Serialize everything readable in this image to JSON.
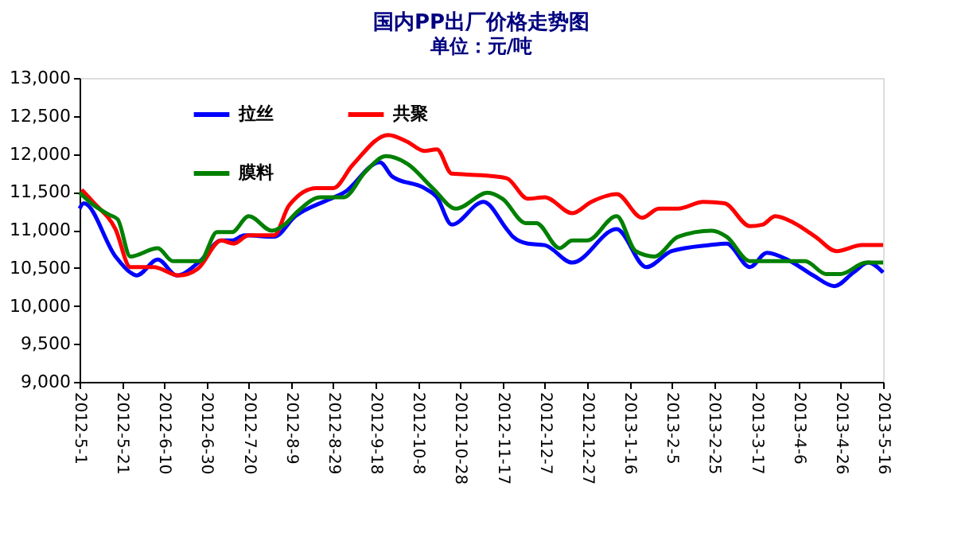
{
  "chart_data": {
    "type": "line",
    "title": "国内PP出厂价格走势图",
    "subtitle": "单位：元/吨",
    "xlim": [
      "2012-05-01",
      "2013-05-16"
    ],
    "xticks": [
      {
        "value": "2012-05-01",
        "label": "2012-5-1"
      },
      {
        "value": "2012-05-21",
        "label": "2012-5-21"
      },
      {
        "value": "2012-06-10",
        "label": "2012-6-10"
      },
      {
        "value": "2012-06-30",
        "label": "2012-6-30"
      },
      {
        "value": "2012-07-20",
        "label": "2012-7-20"
      },
      {
        "value": "2012-08-09",
        "label": "2012-8-9"
      },
      {
        "value": "2012-08-29",
        "label": "2012-8-29"
      },
      {
        "value": "2012-09-18",
        "label": "2012-9-18"
      },
      {
        "value": "2012-10-08",
        "label": "2012-10-8"
      },
      {
        "value": "2012-10-28",
        "label": "2012-10-28"
      },
      {
        "value": "2012-11-17",
        "label": "2012-11-17"
      },
      {
        "value": "2012-12-07",
        "label": "2012-12-7"
      },
      {
        "value": "2012-12-27",
        "label": "2012-12-27"
      },
      {
        "value": "2013-01-16",
        "label": "2013-1-16"
      },
      {
        "value": "2013-02-05",
        "label": "2013-2-5"
      },
      {
        "value": "2013-02-25",
        "label": "2013-2-25"
      },
      {
        "value": "2013-03-17",
        "label": "2013-3-17"
      },
      {
        "value": "2013-04-06",
        "label": "2013-4-6"
      },
      {
        "value": "2013-04-26",
        "label": "2013-4-26"
      },
      {
        "value": "2013-05-16",
        "label": "2013-5-16"
      }
    ],
    "ylim": [
      9000,
      13000
    ],
    "yticks": [
      {
        "value": 9000,
        "label": "9,000"
      },
      {
        "value": 9500,
        "label": "9,500"
      },
      {
        "value": 10000,
        "label": "10,000"
      },
      {
        "value": 10500,
        "label": "10,500"
      },
      {
        "value": 11000,
        "label": "11,000"
      },
      {
        "value": 11500,
        "label": "11,500"
      },
      {
        "value": 12000,
        "label": "12,000"
      },
      {
        "value": 12500,
        "label": "12,500"
      },
      {
        "value": 13000,
        "label": "13,000"
      }
    ],
    "grid": false,
    "legend": "top left",
    "marker": "none",
    "line_style": "solid",
    "series": [
      {
        "name": "拉丝",
        "color": "#0000ff",
        "x": [
          "2012-05-01",
          "2012-05-03",
          "2012-05-18",
          "2012-05-25",
          "2012-05-28",
          "2012-06-07",
          "2012-06-16",
          "2012-06-27",
          "2012-07-07",
          "2012-07-12",
          "2012-07-18",
          "2012-08-01",
          "2012-08-11",
          "2012-08-26",
          "2012-09-03",
          "2012-09-20",
          "2012-09-26",
          "2012-10-11",
          "2012-10-17",
          "2012-10-24",
          "2012-11-08",
          "2012-11-19",
          "2012-11-22",
          "2012-11-29",
          "2012-12-07",
          "2012-12-20",
          "2013-01-10",
          "2013-01-24",
          "2013-02-05",
          "2013-02-23",
          "2013-03-03",
          "2013-03-14",
          "2013-03-22",
          "2013-04-02",
          "2013-04-13",
          "2013-04-23",
          "2013-05-02",
          "2013-05-09",
          "2013-05-16"
        ],
        "values": [
          11280,
          11350,
          10650,
          10440,
          10400,
          10610,
          10400,
          10590,
          10860,
          10860,
          10930,
          10910,
          11180,
          11390,
          11490,
          11890,
          11700,
          11550,
          11430,
          11070,
          11370,
          11010,
          10910,
          10820,
          10800,
          10570,
          11010,
          10510,
          10720,
          10800,
          10820,
          10510,
          10700,
          10590,
          10400,
          10260,
          10440,
          10570,
          10440
        ]
      },
      {
        "name": "共聚",
        "color": "#ff0000",
        "x": [
          "2012-05-02",
          "2012-05-08",
          "2012-05-18",
          "2012-05-25",
          "2012-06-05",
          "2012-06-17",
          "2012-06-26",
          "2012-07-07",
          "2012-07-13",
          "2012-07-20",
          "2012-08-01",
          "2012-08-08",
          "2012-08-21",
          "2012-08-29",
          "2012-09-07",
          "2012-09-24",
          "2012-10-03",
          "2012-10-11",
          "2012-10-17",
          "2012-10-24",
          "2012-11-07",
          "2012-11-19",
          "2012-11-29",
          "2012-12-07",
          "2012-12-20",
          "2012-12-29",
          "2013-01-10",
          "2013-01-22",
          "2013-01-30",
          "2013-02-08",
          "2013-02-20",
          "2013-03-02",
          "2013-03-14",
          "2013-03-20",
          "2013-03-26",
          "2013-04-04",
          "2013-04-14",
          "2013-04-24",
          "2013-05-06",
          "2013-05-16"
        ],
        "values": [
          11530,
          11350,
          11010,
          10510,
          10510,
          10400,
          10490,
          10860,
          10820,
          10930,
          10930,
          11320,
          11550,
          11550,
          11850,
          12250,
          12160,
          12040,
          12060,
          11740,
          11720,
          11680,
          11410,
          11430,
          11220,
          11370,
          11470,
          11160,
          11280,
          11280,
          11370,
          11350,
          11050,
          11070,
          11180,
          11090,
          10910,
          10720,
          10800,
          10800
        ]
      },
      {
        "name": "膜料",
        "color": "#008000",
        "x": [
          "2012-05-01",
          "2012-05-08",
          "2012-05-15",
          "2012-05-19",
          "2012-05-25",
          "2012-06-07",
          "2012-06-14",
          "2012-06-27",
          "2012-07-05",
          "2012-07-12",
          "2012-07-20",
          "2012-07-31",
          "2012-08-06",
          "2012-08-12",
          "2012-08-23",
          "2012-09-03",
          "2012-09-13",
          "2012-09-23",
          "2012-10-03",
          "2012-10-15",
          "2012-10-26",
          "2012-11-10",
          "2012-11-17",
          "2012-11-28",
          "2012-12-03",
          "2012-12-14",
          "2012-12-20",
          "2012-12-27",
          "2013-01-10",
          "2013-01-19",
          "2013-01-28",
          "2013-02-08",
          "2013-02-24",
          "2013-03-03",
          "2013-03-14",
          "2013-04-09",
          "2013-04-19",
          "2013-04-26",
          "2013-05-08",
          "2013-05-16"
        ],
        "values": [
          11490,
          11320,
          11200,
          11140,
          10650,
          10760,
          10590,
          10590,
          10970,
          10970,
          11180,
          10990,
          11070,
          11240,
          11430,
          11430,
          11760,
          11970,
          11870,
          11550,
          11280,
          11490,
          11410,
          11090,
          11090,
          10760,
          10860,
          10860,
          11180,
          10720,
          10650,
          10910,
          10990,
          10910,
          10590,
          10590,
          10420,
          10420,
          10570,
          10570
        ]
      }
    ]
  }
}
